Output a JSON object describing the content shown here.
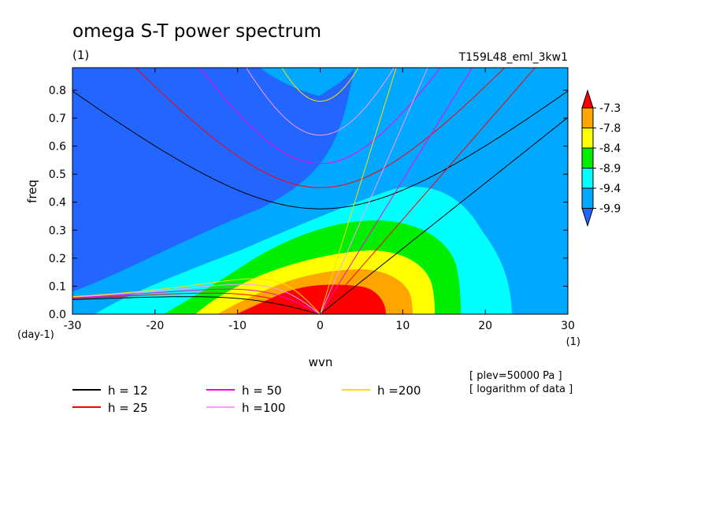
{
  "chart_data": {
    "type": "heatmap",
    "title": "omega S-T power spectrum",
    "subtitle": "(1)",
    "run_label": "T159L48_eml_3kw1",
    "xlabel": "wvn",
    "ylabel": "freq",
    "x_unit": "(1)",
    "y_unit": "(day-1)",
    "xlim": [
      -30,
      30
    ],
    "ylim": [
      0,
      0.88
    ],
    "x_ticks": [
      "-30",
      "-20",
      "-10",
      "0",
      "10",
      "20",
      "30"
    ],
    "y_ticks": [
      "0.0",
      "0.1",
      "0.2",
      "0.3",
      "0.4",
      "0.5",
      "0.6",
      "0.7",
      "0.8"
    ],
    "colorbar": {
      "levels": [
        "-7.3",
        "-7.8",
        "-8.4",
        "-8.9",
        "-9.4",
        "-9.9"
      ],
      "colors": [
        "#ff0000",
        "#ffa500",
        "#ffff00",
        "#00ee00",
        "#00ffff",
        "#00a8ff",
        "#2266ff"
      ]
    },
    "notes": [
      "[ plev=50000 Pa ]",
      "[ logarithm of data ]"
    ],
    "dispersion_curves": [
      {
        "name": "h = 12",
        "h": 12,
        "color": "#000000"
      },
      {
        "name": "h = 25",
        "h": 25,
        "color": "#ff0000"
      },
      {
        "name": "h = 50",
        "h": 50,
        "color": "#ff00dd"
      },
      {
        "name": "h =100",
        "h": 100,
        "color": "#ff99ff"
      },
      {
        "name": "h =200",
        "h": 200,
        "color": "#ffdd00"
      }
    ]
  }
}
